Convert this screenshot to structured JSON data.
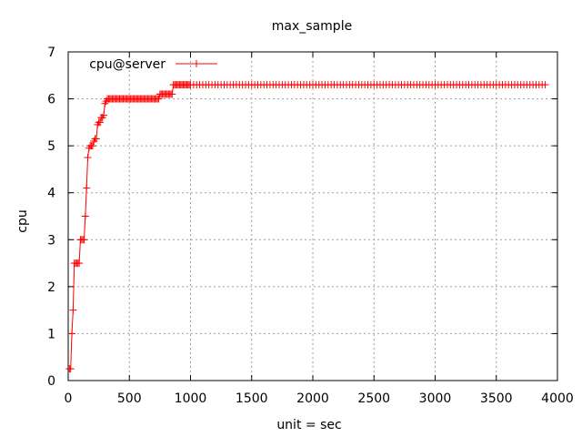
{
  "chart_data": {
    "type": "line",
    "title": "max_sample",
    "xlabel": "unit = sec",
    "ylabel": "cpu",
    "xlim": [
      0,
      4000
    ],
    "ylim": [
      0,
      7
    ],
    "x_ticks": [
      0,
      500,
      1000,
      1500,
      2000,
      2500,
      3000,
      3500,
      4000
    ],
    "y_ticks": [
      0,
      1,
      2,
      3,
      4,
      5,
      6,
      7
    ],
    "grid": true,
    "legend_position": "top-left",
    "series": [
      {
        "name": "cpu@server",
        "color": "#ff0000",
        "marker": "plus",
        "x": [
          10,
          20,
          30,
          40,
          50,
          60,
          70,
          80,
          90,
          100,
          110,
          120,
          130,
          140,
          150,
          160,
          170,
          180,
          190,
          200,
          210,
          220,
          230,
          240,
          250,
          260,
          270,
          280,
          290,
          300,
          310,
          320,
          330,
          340,
          350,
          360,
          370,
          380,
          390,
          400,
          410,
          420,
          430,
          440,
          450,
          460,
          470,
          480,
          490,
          500,
          510,
          520,
          530,
          540,
          550,
          560,
          570,
          580,
          590,
          600,
          610,
          620,
          630,
          640,
          650,
          660,
          670,
          680,
          690,
          700,
          710,
          720,
          730,
          740,
          750,
          760,
          770,
          780,
          790,
          800,
          810,
          820,
          830,
          840,
          850,
          860,
          870,
          880,
          890,
          900,
          910,
          920,
          930,
          940,
          950,
          960,
          970,
          980,
          990,
          1000,
          1025,
          1050,
          1075,
          1100,
          1125,
          1150,
          1175,
          1200,
          1225,
          1250,
          1275,
          1300,
          1325,
          1350,
          1375,
          1400,
          1425,
          1450,
          1475,
          1500,
          1525,
          1550,
          1575,
          1600,
          1625,
          1650,
          1675,
          1700,
          1725,
          1750,
          1775,
          1800,
          1825,
          1850,
          1875,
          1900,
          1925,
          1950,
          1975,
          2000,
          2025,
          2050,
          2075,
          2100,
          2125,
          2150,
          2175,
          2200,
          2225,
          2250,
          2275,
          2300,
          2325,
          2350,
          2375,
          2400,
          2425,
          2450,
          2475,
          2500,
          2525,
          2550,
          2575,
          2600,
          2625,
          2650,
          2675,
          2700,
          2725,
          2750,
          2775,
          2800,
          2825,
          2850,
          2875,
          2900,
          2925,
          2950,
          2975,
          3000,
          3025,
          3050,
          3075,
          3100,
          3125,
          3150,
          3175,
          3200,
          3225,
          3250,
          3275,
          3300,
          3325,
          3350,
          3375,
          3400,
          3425,
          3450,
          3475,
          3500,
          3525,
          3550,
          3575,
          3600,
          3625,
          3650,
          3675,
          3700,
          3725,
          3750,
          3775,
          3800,
          3825,
          3850,
          3875,
          3900
        ],
        "y": [
          0.25,
          0.25,
          1.0,
          1.5,
          2.5,
          2.5,
          2.5,
          2.5,
          2.5,
          3.0,
          3.0,
          3.0,
          3.0,
          3.5,
          4.1,
          4.75,
          4.95,
          5.0,
          5.0,
          5.0,
          5.1,
          5.15,
          5.15,
          5.45,
          5.5,
          5.5,
          5.6,
          5.6,
          5.65,
          5.9,
          5.95,
          6.0,
          6.0,
          6.0,
          6.0,
          6.0,
          6.0,
          6.0,
          6.0,
          6.0,
          6.0,
          6.0,
          6.0,
          6.0,
          6.0,
          6.0,
          6.0,
          6.0,
          6.0,
          6.0,
          6.0,
          6.0,
          6.0,
          6.0,
          6.0,
          6.0,
          6.0,
          6.0,
          6.0,
          6.0,
          6.0,
          6.0,
          6.0,
          6.0,
          6.0,
          6.0,
          6.0,
          6.0,
          6.0,
          6.0,
          6.0,
          6.0,
          6.0,
          6.0,
          6.1,
          6.1,
          6.1,
          6.1,
          6.1,
          6.1,
          6.1,
          6.1,
          6.1,
          6.1,
          6.1,
          6.3,
          6.3,
          6.3,
          6.3,
          6.3,
          6.3,
          6.3,
          6.3,
          6.3,
          6.3,
          6.3,
          6.3,
          6.3,
          6.3,
          6.3,
          6.3,
          6.3,
          6.3,
          6.3,
          6.3,
          6.3,
          6.3,
          6.3,
          6.3,
          6.3,
          6.3,
          6.3,
          6.3,
          6.3,
          6.3,
          6.3,
          6.3,
          6.3,
          6.3,
          6.3,
          6.3,
          6.3,
          6.3,
          6.3,
          6.3,
          6.3,
          6.3,
          6.3,
          6.3,
          6.3,
          6.3,
          6.3,
          6.3,
          6.3,
          6.3,
          6.3,
          6.3,
          6.3,
          6.3,
          6.3,
          6.3,
          6.3,
          6.3,
          6.3,
          6.3,
          6.3,
          6.3,
          6.3,
          6.3,
          6.3,
          6.3,
          6.3,
          6.3,
          6.3,
          6.3,
          6.3,
          6.3,
          6.3,
          6.3,
          6.3,
          6.3,
          6.3,
          6.3,
          6.3,
          6.3,
          6.3,
          6.3,
          6.3,
          6.3,
          6.3,
          6.3,
          6.3,
          6.3,
          6.3,
          6.3,
          6.3,
          6.3,
          6.3,
          6.3,
          6.3,
          6.3,
          6.3,
          6.3,
          6.3,
          6.3,
          6.3,
          6.3,
          6.3,
          6.3,
          6.3,
          6.3,
          6.3,
          6.3,
          6.3,
          6.3,
          6.3,
          6.3,
          6.3,
          6.3,
          6.3,
          6.3,
          6.3,
          6.3,
          6.3,
          6.3,
          6.3,
          6.3,
          6.3,
          6.3,
          6.3,
          6.3,
          6.3,
          6.3,
          6.3,
          6.3,
          6.3
        ]
      }
    ]
  }
}
